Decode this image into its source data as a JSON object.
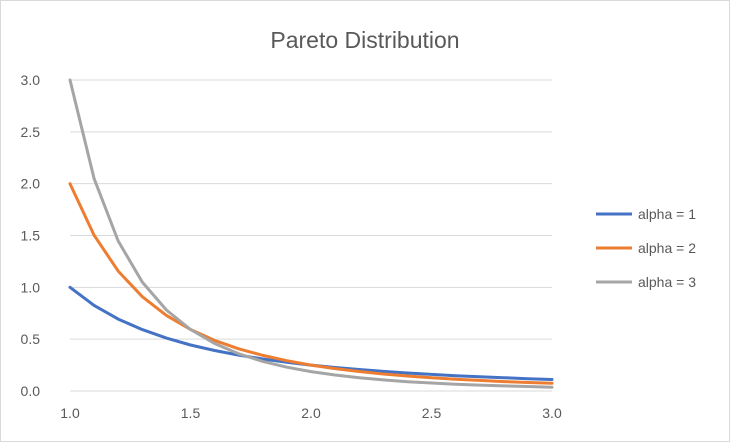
{
  "chart_data": {
    "type": "line",
    "title": "Pareto Distribution",
    "xlabel": "",
    "ylabel": "",
    "x": [
      1.0,
      1.1,
      1.2,
      1.3,
      1.4,
      1.5,
      1.6,
      1.7,
      1.8,
      1.9,
      2.0,
      2.1,
      2.2,
      2.3,
      2.4,
      2.5,
      2.6,
      2.7,
      2.8,
      2.9,
      3.0
    ],
    "xlim": [
      1.0,
      3.0
    ],
    "ylim": [
      0.0,
      3.0
    ],
    "x_ticks": [
      "1.0",
      "1.5",
      "2.0",
      "2.5",
      "3.0"
    ],
    "y_ticks": [
      "0.0",
      "0.5",
      "1.0",
      "1.5",
      "2.0",
      "2.5",
      "3.0"
    ],
    "grid": "horizontal",
    "legend_position": "right",
    "series": [
      {
        "name": "alpha = 1",
        "color": "#4472c4",
        "values": [
          1.0,
          0.826,
          0.694,
          0.592,
          0.51,
          0.444,
          0.391,
          0.346,
          0.309,
          0.277,
          0.25,
          0.227,
          0.207,
          0.189,
          0.174,
          0.16,
          0.148,
          0.137,
          0.128,
          0.119,
          0.111
        ]
      },
      {
        "name": "alpha = 2",
        "color": "#ed7d31",
        "values": [
          2.0,
          1.503,
          1.157,
          0.91,
          0.729,
          0.593,
          0.488,
          0.407,
          0.343,
          0.292,
          0.25,
          0.216,
          0.188,
          0.164,
          0.145,
          0.128,
          0.114,
          0.102,
          0.091,
          0.082,
          0.074
        ]
      },
      {
        "name": "alpha = 3",
        "color": "#a5a5a5",
        "values": [
          3.0,
          2.049,
          1.447,
          1.05,
          0.781,
          0.593,
          0.458,
          0.359,
          0.286,
          0.23,
          0.1875,
          0.154,
          0.128,
          0.107,
          0.09,
          0.077,
          0.066,
          0.057,
          0.049,
          0.043,
          0.037
        ]
      }
    ]
  }
}
